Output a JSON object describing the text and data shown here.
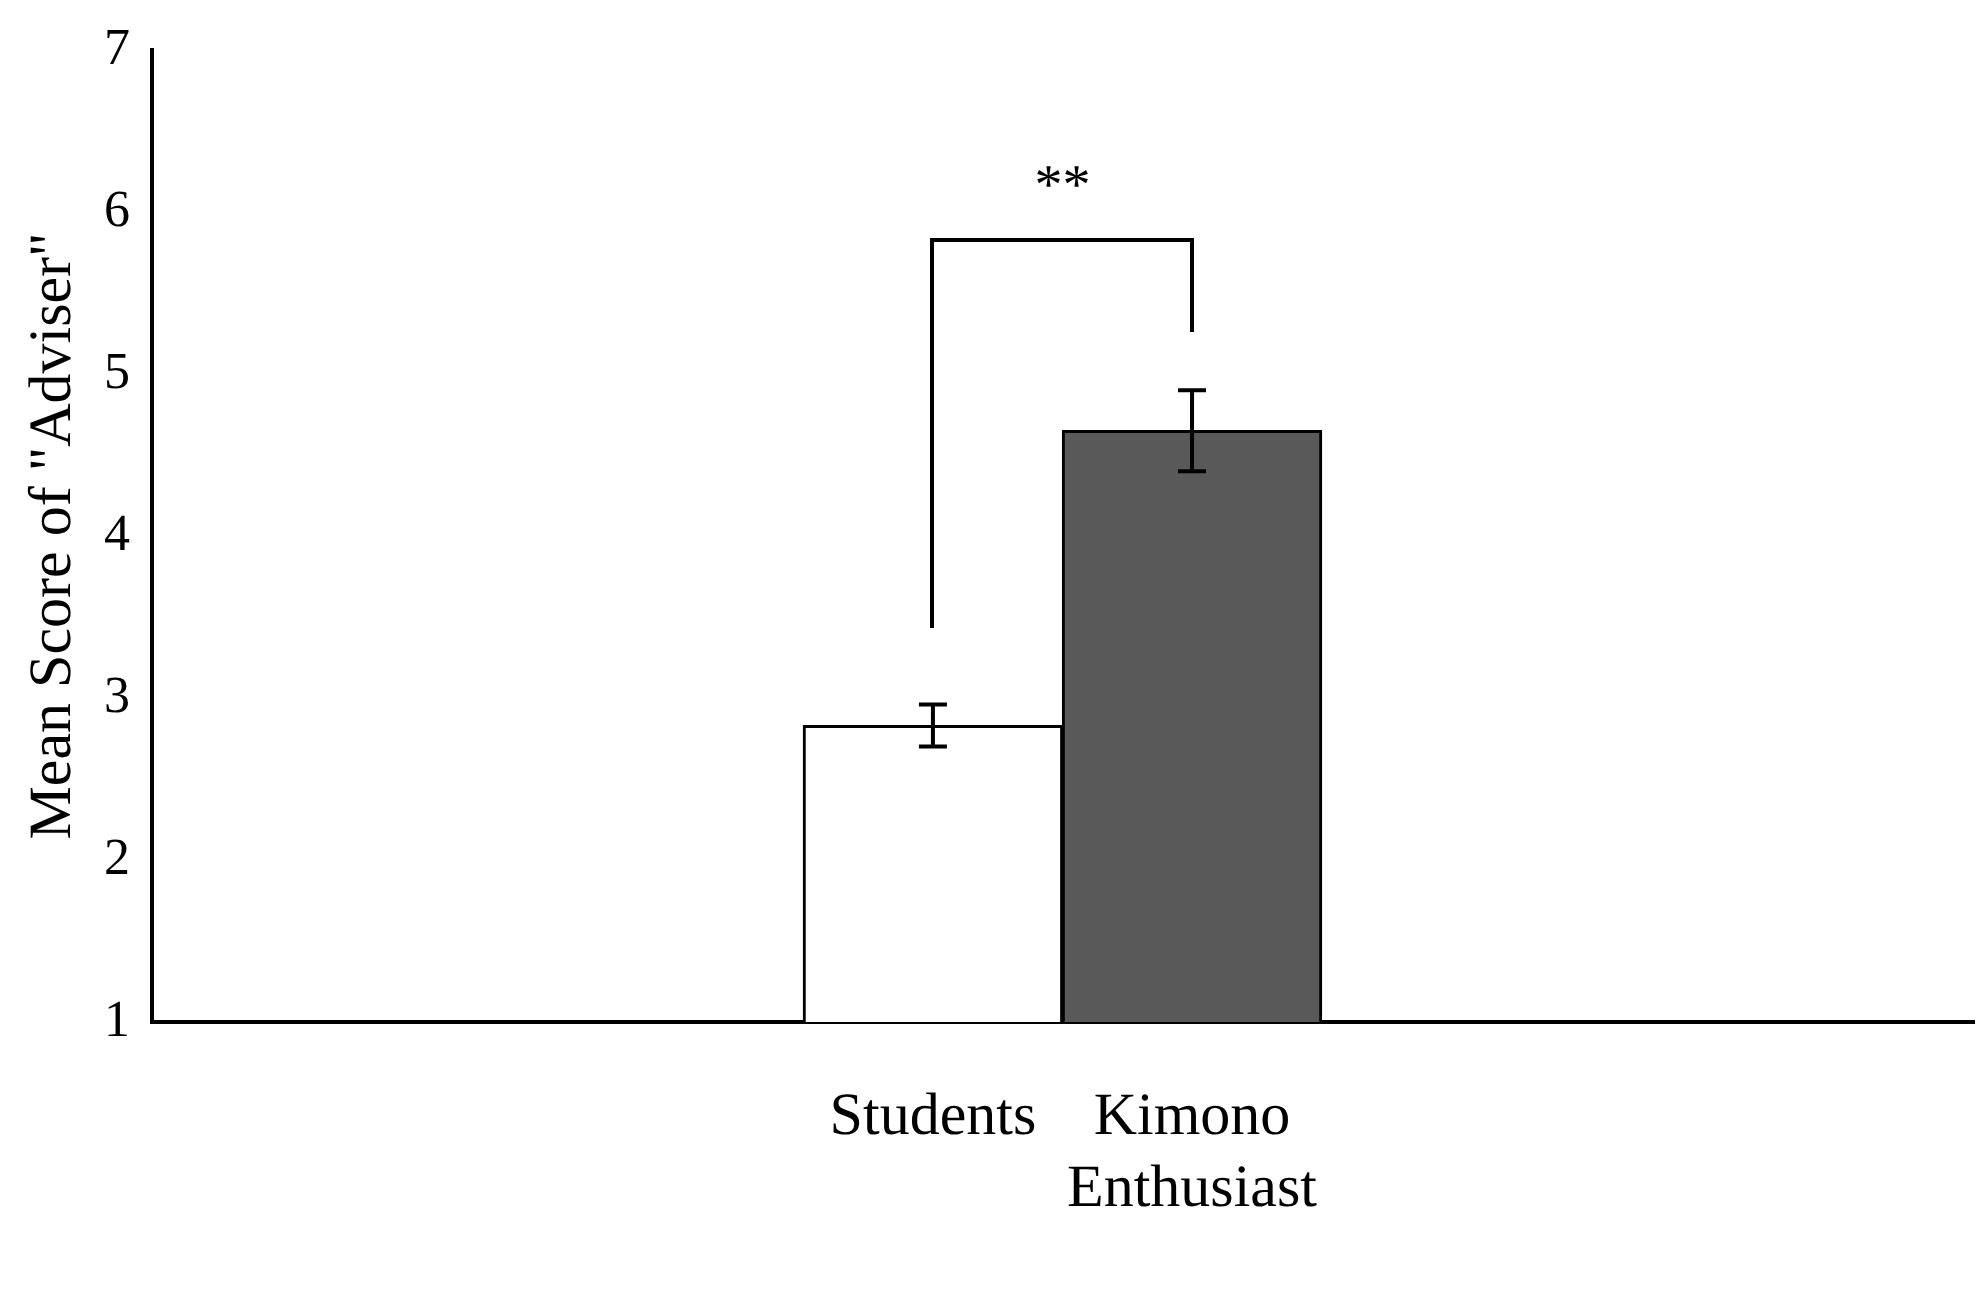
{
  "chart_data": {
    "type": "bar",
    "ylabel": "Mean Score of \"Adviser\"",
    "categories": [
      "Students",
      "Kimono Enthusiast"
    ],
    "values": [
      2.83,
      4.65
    ],
    "colors": [
      "#ffffff",
      "#595959"
    ],
    "errors": [
      0.13,
      0.25
    ],
    "ylim": [
      1,
      7
    ],
    "yticks": [
      1,
      2,
      3,
      4,
      5,
      6,
      7
    ],
    "grid": false,
    "annotations": [
      "**"
    ]
  }
}
